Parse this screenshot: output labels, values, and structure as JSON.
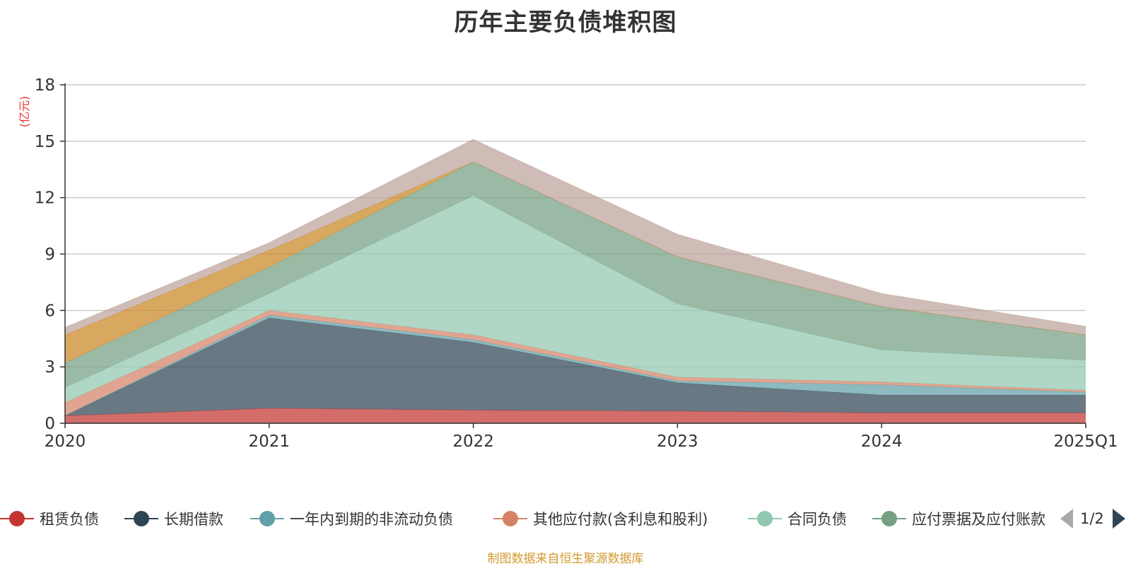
{
  "title": "历年主要负债堆积图",
  "unit_label": "(亿元)",
  "source_note": "制图数据来自恒生聚源数据库",
  "legend_pager": "1/2",
  "chart_data": {
    "type": "area",
    "stacked": true,
    "title": "历年主要负债堆积图",
    "ylabel": "(亿元)",
    "xlabel": "",
    "categories": [
      "2020",
      "2021",
      "2022",
      "2023",
      "2024",
      "2025Q1"
    ],
    "ylim": [
      0,
      18
    ],
    "yticks": [
      0,
      3,
      6,
      9,
      12,
      15,
      18
    ],
    "grid": true,
    "legend_position": "bottom",
    "series": [
      {
        "name": "租赁负债",
        "color": "#c23531",
        "values": [
          0.4,
          0.8,
          0.7,
          0.65,
          0.55,
          0.55
        ]
      },
      {
        "name": "长期借款",
        "color": "#2f4554",
        "values": [
          0.0,
          4.8,
          3.6,
          1.5,
          0.95,
          0.95
        ]
      },
      {
        "name": "一年内到期的非流动负债",
        "color": "#61a0a8",
        "values": [
          0.0,
          0.15,
          0.15,
          0.1,
          0.55,
          0.15
        ]
      },
      {
        "name": "其他应付款(含利息和股利)",
        "color": "#d48265",
        "values": [
          0.7,
          0.25,
          0.25,
          0.2,
          0.15,
          0.1
        ]
      },
      {
        "name": "合同负债",
        "color": "#91c7ae",
        "values": [
          0.8,
          0.9,
          7.4,
          3.9,
          1.7,
          1.6
        ]
      },
      {
        "name": "应付票据及应付账款",
        "color": "#749f83",
        "values": [
          1.3,
          1.4,
          1.8,
          2.5,
          2.3,
          1.35
        ]
      },
      {
        "name": "",
        "color": "#ca8622",
        "values": [
          1.5,
          0.9,
          0.0,
          0.0,
          0.0,
          0.0
        ]
      },
      {
        "name": "",
        "color": "#bda29a",
        "values": [
          0.4,
          0.4,
          1.2,
          1.2,
          0.7,
          0.45
        ]
      }
    ]
  }
}
